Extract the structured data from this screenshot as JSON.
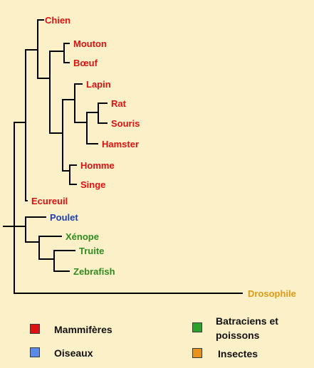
{
  "colors": {
    "background": "#FCF0C8",
    "branch": "#000000",
    "mammiferes": "#DD1111",
    "oiseaux": "#1A3FB0",
    "batraciens_poissons": "#2E8B1F",
    "insectes": "#E09A14"
  },
  "tree": {
    "leaves": [
      {
        "id": "chien",
        "label": "Chien",
        "group": "mammiferes"
      },
      {
        "id": "mouton",
        "label": "Mouton",
        "group": "mammiferes"
      },
      {
        "id": "boeuf",
        "label": "Bœuf",
        "group": "mammiferes"
      },
      {
        "id": "lapin",
        "label": "Lapin",
        "group": "mammiferes"
      },
      {
        "id": "rat",
        "label": "Rat",
        "group": "mammiferes"
      },
      {
        "id": "souris",
        "label": "Souris",
        "group": "mammiferes"
      },
      {
        "id": "hamster",
        "label": "Hamster",
        "group": "mammiferes"
      },
      {
        "id": "homme",
        "label": "Homme",
        "group": "mammiferes"
      },
      {
        "id": "singe",
        "label": "Singe",
        "group": "mammiferes"
      },
      {
        "id": "ecureuil",
        "label": "Ecureuil",
        "group": "mammiferes"
      },
      {
        "id": "poulet",
        "label": "Poulet",
        "group": "oiseaux"
      },
      {
        "id": "xenope",
        "label": "Xénope",
        "group": "batraciens_poissons"
      },
      {
        "id": "truite",
        "label": "Truite",
        "group": "batraciens_poissons"
      },
      {
        "id": "zebrafish",
        "label": "Zebrafish",
        "group": "batraciens_poissons"
      },
      {
        "id": "drosophile",
        "label": "Drosophile",
        "group": "insectes"
      }
    ]
  },
  "legend": {
    "mammiferes": {
      "label": "Mammifères",
      "color": "#DD1111"
    },
    "oiseaux": {
      "label": "Oiseaux",
      "color": "#5A8BE8"
    },
    "batraciens_poissons": {
      "label": "Batraciens et poissons",
      "color": "#2EA02E"
    },
    "insectes": {
      "label": "Insectes",
      "color": "#E8921A"
    }
  }
}
